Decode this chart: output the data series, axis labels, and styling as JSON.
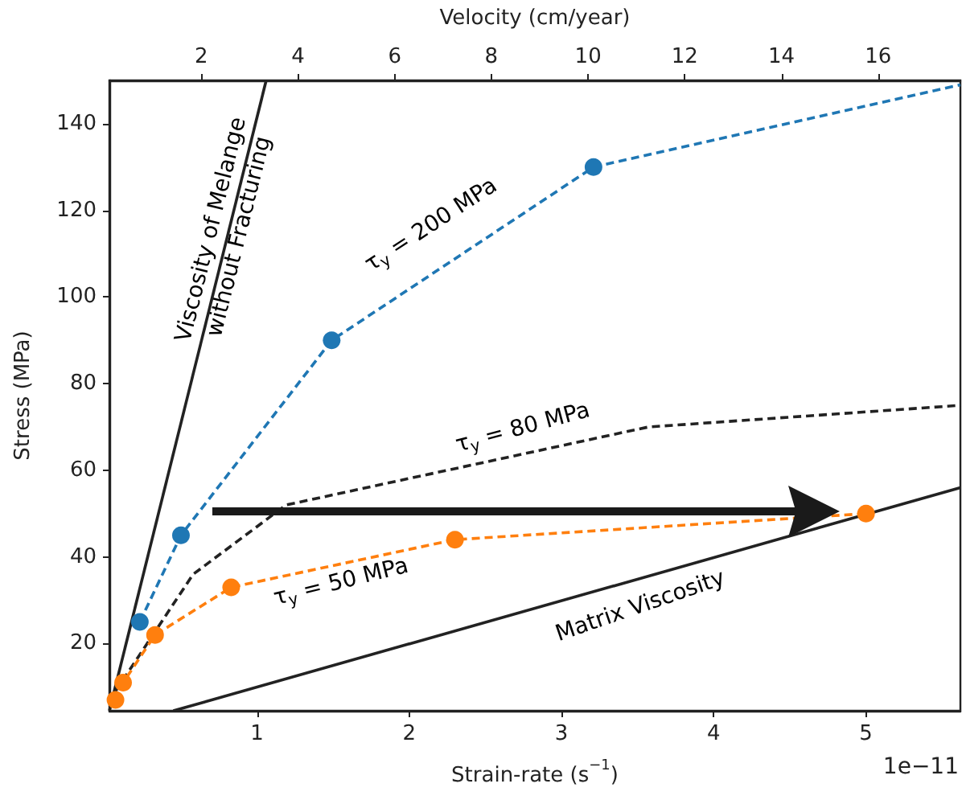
{
  "chart_data": {
    "type": "line",
    "xlabel": "Strain-rate (s$^{−1}$)",
    "ylabel": "Stress (MPa)",
    "x2label": "Velocity (cm/year)",
    "xlim": [
      0.03,
      5.62
    ],
    "xticks": [
      1,
      2,
      3,
      4,
      5
    ],
    "ylim": [
      4.5,
      150
    ],
    "yticks": [
      20,
      40,
      60,
      80,
      100,
      120,
      140
    ],
    "x2lim": [
      0.1,
      17.7
    ],
    "x2ticks": [
      2,
      4,
      6,
      8,
      10,
      12,
      14,
      16
    ],
    "grid": false,
    "annotations": [
      "1e−11"
    ],
    "series": [
      {
        "name": "Viscosity of Melange\nwithout Fracturing",
        "color": "#222222",
        "line_style": "solid",
        "marker": "none",
        "x": [
          0.03,
          1.06
        ],
        "values": [
          4.5,
          150
        ]
      },
      {
        "name": "Matrix Viscosity",
        "color": "#222222",
        "line_style": "solid",
        "marker": "none",
        "x": [
          0.45,
          5.62
        ],
        "values": [
          4.5,
          56
        ]
      },
      {
        "name": "τ$_{y}$ = 200 MPa",
        "color": "#1f77b4",
        "line_style": "dashed",
        "marker": "circle",
        "x": [
          0.23,
          0.5,
          1.49,
          3.21
        ],
        "values": [
          25,
          45,
          90,
          130
        ]
      },
      {
        "type": "line",
        "color": "#1f77b4",
        "line_style": "dashed",
        "marker": "none",
        "x": [
          3.21,
          5.62
        ],
        "values": [
          130,
          149
        ]
      },
      {
        "name": "τ$_{y}$ = 80 MPa",
        "color": "#222222",
        "line_style": "dashed",
        "marker": "none",
        "x": [
          0.07,
          0.58,
          1.19,
          3.57,
          5.62
        ],
        "values": [
          9,
          36,
          52,
          70,
          75
        ]
      },
      {
        "name": "τ$_{y}$ = 50 MPa",
        "color": "#ff7f0e",
        "line_style": "dashed",
        "marker": "circle",
        "x": [
          0.07,
          0.12,
          0.33,
          0.83,
          2.3,
          5.0
        ],
        "values": [
          7,
          11,
          22,
          33,
          44,
          50
        ]
      }
    ]
  }
}
